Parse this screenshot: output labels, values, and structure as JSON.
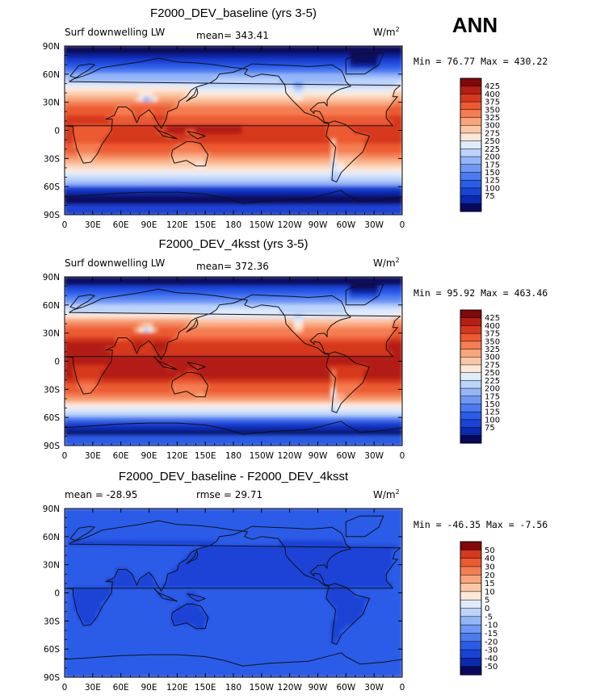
{
  "season": "ANN",
  "colors": {
    "warm": [
      "#08085e",
      "#0a2bb0",
      "#1a43d6",
      "#2b5ce8",
      "#4c7bf0",
      "#6f98f5",
      "#94b6f8",
      "#bcd3fa",
      "#e0ebfb",
      "#fde7d6",
      "#fbc8a7",
      "#f8a57c",
      "#f47d51",
      "#ec5a31",
      "#d6381f",
      "#b31f15",
      "#800808"
    ],
    "diff": [
      "#08085e",
      "#0a2bb0",
      "#1a43d6",
      "#2b5ce8",
      "#4c7bf0",
      "#6f98f5",
      "#94b6f8",
      "#bcd3fa",
      "#e0ebfb",
      "#fde7d6",
      "#fbc8a7",
      "#f8a57c",
      "#f47d51",
      "#ec5a31",
      "#d6381f",
      "#800808"
    ],
    "coast": "#111111"
  },
  "chart_data": [
    {
      "type": "heatmap",
      "title": "F2000_DEV_baseline (yrs 3-5)",
      "left_label": "Surf downwelling LW",
      "center_label": "mean= 343.41",
      "units": "W/m",
      "units_exp": "2",
      "stats": "Min =   76.77 Max = 430.22",
      "min": 76.77,
      "max": 430.22,
      "colorbar_levels": [
        "425",
        "400",
        "375",
        "350",
        "325",
        "300",
        "275",
        "250",
        "225",
        "200",
        "175",
        "150",
        "125",
        "100",
        "75"
      ],
      "palette": "warm",
      "field": "base",
      "xticks": [
        "0",
        "30E",
        "60E",
        "90E",
        "120E",
        "150E",
        "180",
        "150W",
        "120W",
        "90W",
        "60W",
        "30W",
        "0"
      ],
      "yticks": [
        "90N",
        "60N",
        "30N",
        "0",
        "30S",
        "60S",
        "90S"
      ]
    },
    {
      "type": "heatmap",
      "title": "F2000_DEV_4ksst (yrs 3-5)",
      "left_label": "Surf downwelling LW",
      "center_label": "mean= 372.36",
      "units": "W/m",
      "units_exp": "2",
      "stats": "Min =   95.92 Max = 463.46",
      "min": 95.92,
      "max": 463.46,
      "colorbar_levels": [
        "425",
        "400",
        "375",
        "350",
        "325",
        "300",
        "275",
        "250",
        "225",
        "200",
        "175",
        "150",
        "125",
        "100",
        "75"
      ],
      "palette": "warm",
      "field": "warm",
      "xticks": [
        "0",
        "30E",
        "60E",
        "90E",
        "120E",
        "150E",
        "180",
        "150W",
        "120W",
        "90W",
        "60W",
        "30W",
        "0"
      ],
      "yticks": [
        "90N",
        "60N",
        "30N",
        "0",
        "30S",
        "60S",
        "90S"
      ]
    },
    {
      "type": "heatmap",
      "title": "F2000_DEV_baseline - F2000_DEV_4ksst",
      "left_label": "mean =  -28.95",
      "center_label": "rmse =   29.71",
      "units": "W/m",
      "units_exp": "2",
      "stats": "Min = -46.35 Max =  -7.56",
      "min": -46.35,
      "max": -7.56,
      "colorbar_levels": [
        "50",
        "40",
        "30",
        "20",
        "15",
        "10",
        "5",
        "0",
        "-5",
        "-10",
        "-15",
        "-20",
        "-30",
        "-40",
        "-50"
      ],
      "palette": "diff",
      "field": "diff",
      "xticks": [
        "0",
        "30E",
        "60E",
        "90E",
        "120E",
        "150E",
        "180",
        "150W",
        "120W",
        "90W",
        "60W",
        "30W",
        "0"
      ],
      "yticks": [
        "90N",
        "60N",
        "30N",
        "0",
        "30S",
        "60S",
        "90S"
      ]
    }
  ]
}
